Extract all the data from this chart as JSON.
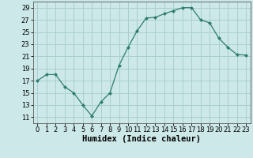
{
  "x": [
    0,
    1,
    2,
    3,
    4,
    5,
    6,
    7,
    8,
    9,
    10,
    11,
    12,
    13,
    14,
    15,
    16,
    17,
    18,
    19,
    20,
    21,
    22,
    23
  ],
  "y": [
    17,
    18,
    18,
    16,
    15,
    13,
    11.2,
    13.5,
    15,
    19.5,
    22.5,
    25.2,
    27.3,
    27.4,
    28,
    28.5,
    29,
    29,
    27,
    26.5,
    24,
    22.5,
    21.3,
    21.2
  ],
  "line_color": "#2e7d6e",
  "marker": "D",
  "marker_size": 2.0,
  "bg_color": "#cce8e8",
  "grid_color": "#aacfcf",
  "xlabel": "Humidex (Indice chaleur)",
  "xlim": [
    -0.5,
    23.5
  ],
  "ylim": [
    10,
    30
  ],
  "yticks": [
    11,
    13,
    15,
    17,
    19,
    21,
    23,
    25,
    27,
    29
  ],
  "xtick_labels": [
    "0",
    "1",
    "2",
    "3",
    "4",
    "5",
    "6",
    "7",
    "8",
    "9",
    "10",
    "11",
    "12",
    "13",
    "14",
    "15",
    "16",
    "17",
    "18",
    "19",
    "20",
    "21",
    "22",
    "23"
  ],
  "tick_fontsize": 6.0,
  "xlabel_fontsize": 7.5
}
